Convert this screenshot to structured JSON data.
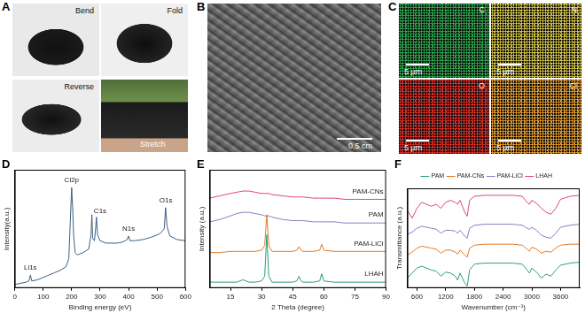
{
  "image_panels": [
    {
      "title": "A",
      "captions": [
        "Bend",
        "Fold",
        "Reverse",
        "Stretch"
      ]
    },
    {
      "title": "B",
      "scale_bar": "0.5 cm"
    },
    {
      "title": "C",
      "maps": [
        {
          "element": "C",
          "color": "#2fa84f",
          "scale_bar": "5 μm"
        },
        {
          "element": "N",
          "color": "#d8c84a",
          "scale_bar": "5 μm"
        },
        {
          "element": "O",
          "color": "#e0302a",
          "scale_bar": "5 μm"
        },
        {
          "element": "Cl",
          "color": "#e8a030",
          "scale_bar": "5 μm"
        }
      ]
    }
  ],
  "chart_data": [
    {
      "type": "line",
      "title": "D",
      "x_label": "Binding energy (eV)",
      "y_label": "Intensity(a.u.)",
      "x": [
        0,
        20,
        40,
        50,
        55,
        60,
        80,
        100,
        120,
        140,
        160,
        180,
        190,
        195,
        200,
        203,
        207,
        212,
        220,
        240,
        260,
        268,
        271,
        274,
        280,
        284,
        287,
        291,
        300,
        320,
        340,
        360,
        380,
        395,
        400,
        405,
        420,
        450,
        480,
        510,
        525,
        530,
        535,
        545,
        570,
        600
      ],
      "series": [
        {
          "color": "#3f5f7f",
          "values": [
            3,
            4,
            5,
            6,
            11,
            6,
            7,
            9,
            11,
            13,
            15,
            18,
            25,
            55,
            85,
            70,
            45,
            30,
            28,
            30,
            33,
            45,
            62,
            42,
            40,
            50,
            60,
            45,
            40,
            38,
            38,
            38,
            39,
            41,
            44,
            40,
            40,
            41,
            43,
            46,
            50,
            68,
            52,
            44,
            41,
            40
          ]
        }
      ],
      "annotations": [
        {
          "text": "Li1s",
          "x": 55,
          "y": 14
        },
        {
          "text": "Cl2p",
          "x": 200,
          "y": 88
        },
        {
          "text": "C1s",
          "x": 300,
          "y": 62
        },
        {
          "text": "N1s",
          "x": 400,
          "y": 47
        },
        {
          "text": "O1s",
          "x": 531,
          "y": 71
        }
      ],
      "xlim": [
        0,
        600
      ],
      "xticks": [
        0,
        100,
        200,
        300,
        400,
        500,
        600
      ],
      "ylim": [
        0,
        100
      ],
      "grid": false,
      "tick_labels": "x"
    },
    {
      "type": "line",
      "title": "E",
      "x_label": "2 Theta (degree)",
      "y_label": "Intensity (a.u.)",
      "x": [
        5,
        10,
        15,
        18,
        21,
        24,
        27,
        30,
        31.5,
        32.5,
        33.5,
        35,
        40,
        45,
        47,
        48,
        49,
        50,
        55,
        58,
        59,
        60,
        65,
        70,
        75,
        80,
        85,
        90
      ],
      "series": [
        {
          "name": "PAM-CNs",
          "color": "#e0428a",
          "values": [
            76,
            78,
            80,
            81,
            82,
            82,
            81,
            80,
            80,
            80,
            80,
            79,
            78,
            77,
            77,
            77,
            77,
            77,
            76,
            76,
            76,
            76,
            76,
            75,
            75,
            75,
            75,
            75
          ]
        },
        {
          "name": "PAM",
          "color": "#8d7cc4",
          "values": [
            56,
            58,
            61,
            63,
            64,
            64,
            63,
            62,
            61,
            61,
            61,
            60,
            58,
            57,
            57,
            57,
            57,
            57,
            56,
            56,
            56,
            56,
            56,
            55,
            55,
            55,
            55,
            55
          ]
        },
        {
          "name": "PAM-LiCl",
          "color": "#e07b2a",
          "values": [
            30,
            30,
            31,
            31,
            31,
            31,
            31,
            32,
            36,
            62,
            36,
            31,
            31,
            31,
            32,
            35,
            32,
            31,
            31,
            32,
            37,
            32,
            31,
            31,
            31,
            31,
            31,
            31
          ]
        },
        {
          "name": "LHAH",
          "color": "#2e9e7a",
          "values": [
            5,
            5,
            5,
            5,
            7,
            5,
            5,
            6,
            10,
            45,
            10,
            5,
            5,
            5,
            6,
            10,
            6,
            5,
            5,
            6,
            12,
            6,
            5,
            5,
            5,
            5,
            5,
            5
          ]
        }
      ],
      "xlim": [
        5,
        90
      ],
      "xticks": [
        15,
        30,
        45,
        60,
        75,
        90
      ],
      "ylim": [
        0,
        100
      ],
      "grid": false,
      "tick_labels": "x"
    },
    {
      "type": "line",
      "title": "F",
      "x_label": "Wavenumber (cm⁻¹)",
      "y_label": "Transmittance (a.u.)",
      "x": [
        400,
        500,
        600,
        700,
        800,
        900,
        1000,
        1100,
        1200,
        1300,
        1400,
        1450,
        1500,
        1600,
        1650,
        1700,
        1800,
        2000,
        2200,
        2400,
        2600,
        2800,
        2900,
        2950,
        3000,
        3100,
        3200,
        3300,
        3400,
        3500,
        3600,
        3800,
        4000
      ],
      "series": [
        {
          "name": "PAM",
          "color": "#2e9e7a",
          "values": [
            10,
            15,
            20,
            22,
            20,
            18,
            17,
            12,
            16,
            15,
            12,
            8,
            15,
            5,
            2,
            18,
            24,
            25,
            25,
            25,
            25,
            24,
            18,
            15,
            20,
            16,
            10,
            14,
            12,
            18,
            23,
            25,
            26
          ]
        },
        {
          "name": "PAM-CNs",
          "color": "#e07b2a",
          "values": [
            33,
            36,
            40,
            42,
            41,
            40,
            39,
            35,
            38,
            38,
            36,
            34,
            38,
            33,
            31,
            40,
            43,
            44,
            44,
            44,
            44,
            43,
            39,
            37,
            41,
            39,
            35,
            37,
            36,
            40,
            43,
            44,
            44
          ]
        },
        {
          "name": "PAM-LiCl",
          "color": "#8d7cc4",
          "values": [
            54,
            56,
            60,
            62,
            61,
            60,
            59,
            55,
            58,
            58,
            57,
            55,
            58,
            52,
            50,
            60,
            63,
            64,
            64,
            64,
            64,
            63,
            60,
            59,
            61,
            58,
            53,
            51,
            50,
            55,
            61,
            63,
            64
          ]
        },
        {
          "name": "LHAH",
          "color": "#e0428a",
          "values": [
            78,
            70,
            80,
            86,
            84,
            82,
            84,
            80,
            86,
            88,
            86,
            84,
            88,
            76,
            72,
            88,
            92,
            93,
            93,
            93,
            93,
            92,
            86,
            84,
            88,
            85,
            80,
            76,
            74,
            80,
            89,
            92,
            93
          ]
        }
      ],
      "xlim": [
        400,
        4000
      ],
      "xticks": [
        600,
        1200,
        1800,
        2400,
        3000,
        3600
      ],
      "ylim": [
        0,
        100
      ],
      "grid": false,
      "tick_labels": "x",
      "legend": "top"
    }
  ]
}
